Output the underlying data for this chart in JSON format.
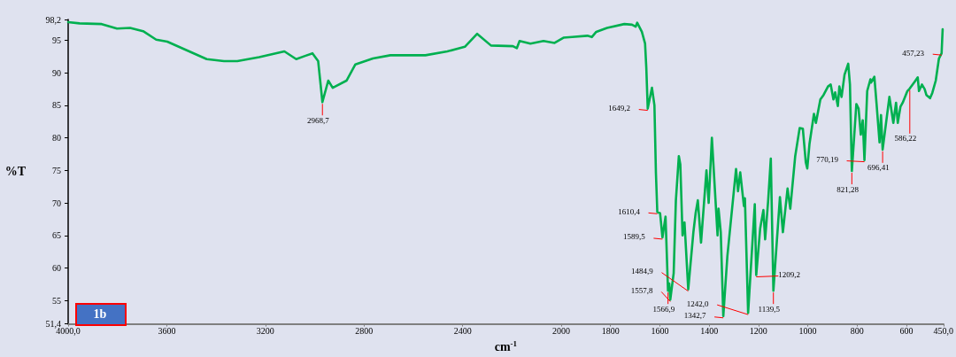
{
  "chart_data": {
    "type": "line",
    "xlabel": "cm$^{-1}$",
    "ylabel": "%T",
    "color": "#00b050",
    "marker": "none",
    "line_style": "solid",
    "xlim": [
      4000,
      450
    ],
    "ylim": [
      51.4,
      98.2
    ],
    "xticks": [
      {
        "value": 4000,
        "label": "4000,0"
      },
      3600,
      3200,
      2800,
      2400,
      2000,
      1800,
      1600,
      1400,
      1200,
      1000,
      800,
      600,
      {
        "value": 450,
        "label": "450,0"
      }
    ],
    "yticks": [
      {
        "value": 51.4,
        "label": "51,4"
      },
      55,
      60,
      65,
      70,
      75,
      80,
      85,
      90,
      95,
      {
        "value": 98.2,
        "label": "98,2"
      }
    ],
    "x": [
      4000,
      3954,
      3864,
      3802,
      3749,
      3696,
      3643,
      3598,
      3509,
      3438,
      3368,
      3314,
      3225,
      3123,
      3075,
      3039,
      3009,
      2986,
      2968.7,
      2945,
      2927,
      2871,
      2835,
      2764,
      2693,
      2551,
      2462,
      2391,
      2341,
      2285,
      2196,
      2180,
      2169,
      2125,
      2072,
      2027,
      1991,
      1956,
      1894,
      1876,
      1858,
      1814,
      1744,
      1713,
      1698,
      1692,
      1673,
      1660,
      1655,
      1649.2,
      1632,
      1622,
      1616,
      1610.4,
      1599,
      1589.5,
      1577,
      1566.9,
      1562,
      1557.8,
      1544,
      1535,
      1523,
      1517,
      1508,
      1500,
      1484.9,
      1464,
      1455,
      1446,
      1433,
      1411,
      1402,
      1389,
      1366,
      1362,
      1353,
      1342.7,
      1326,
      1291,
      1283,
      1274,
      1259,
      1255,
      1242.0,
      1215,
      1209.2,
      1193,
      1180,
      1173,
      1161,
      1150,
      1139.5,
      1113,
      1101,
      1082,
      1071,
      1051,
      1033,
      1020,
      1008,
      1002,
      993,
      975,
      967,
      958,
      949,
      936,
      918,
      907,
      896,
      889,
      878,
      872,
      863,
      851,
      836,
      829,
      821.28,
      803,
      794,
      785,
      777,
      770.19,
      759,
      746,
      743,
      730,
      721,
      709,
      703,
      696.41,
      669,
      653,
      642,
      635,
      624,
      615,
      596,
      586.22,
      567,
      554,
      549,
      537,
      526,
      519,
      504,
      495,
      481,
      468,
      457.23,
      453
    ],
    "values": [
      97.8,
      97.6,
      97.5,
      96.8,
      96.9,
      96.4,
      95.1,
      94.8,
      93.3,
      92.1,
      91.8,
      91.8,
      92.4,
      93.3,
      92.1,
      92.6,
      93.0,
      91.8,
      85.5,
      88.8,
      87.7,
      88.8,
      91.3,
      92.2,
      92.7,
      92.7,
      93.3,
      94.0,
      96.0,
      94.2,
      94.1,
      93.8,
      94.9,
      94.5,
      94.9,
      94.6,
      95.4,
      95.5,
      95.7,
      95.5,
      96.3,
      96.9,
      97.5,
      97.4,
      97.1,
      97.7,
      96.3,
      94.5,
      90.8,
      84.5,
      87.7,
      85.0,
      74.6,
      68.6,
      68.4,
      64.7,
      67.9,
      56.5,
      57.6,
      55.1,
      59.2,
      70.4,
      77.2,
      75.9,
      65.0,
      67.0,
      56.7,
      65.5,
      68.4,
      70.4,
      63.9,
      75.0,
      70.0,
      80.0,
      65.0,
      69.1,
      65.5,
      52.6,
      61.9,
      75.2,
      71.8,
      74.7,
      69.5,
      70.7,
      53.1,
      69.8,
      58.9,
      66.1,
      68.9,
      64.4,
      70.2,
      76.8,
      56.5,
      70.9,
      65.5,
      72.2,
      69.1,
      77.2,
      81.5,
      81.4,
      76.2,
      75.3,
      79.1,
      83.7,
      82.3,
      84.1,
      85.9,
      86.6,
      87.9,
      88.2,
      85.9,
      87.0,
      84.9,
      87.9,
      86.3,
      89.7,
      91.4,
      88.2,
      74.9,
      85.2,
      84.5,
      80.5,
      82.7,
      76.6,
      87.2,
      89.0,
      88.5,
      89.4,
      85.2,
      79.3,
      83.5,
      78.2,
      86.3,
      82.3,
      85.4,
      82.3,
      84.8,
      85.4,
      87.2,
      87.6,
      88.6,
      89.3,
      87.2,
      88.2,
      87.5,
      86.6,
      86.1,
      86.9,
      88.8,
      92.2,
      93.0,
      96.7
    ],
    "annotations": [
      "1b",
      {
        "text": "2968,7",
        "x": 2968.7,
        "y": 85.5
      },
      {
        "text": "1649,2",
        "x": 1649.2,
        "y": 84.5
      },
      {
        "text": "1610,4",
        "x": 1610.4,
        "y": 68.6
      },
      {
        "text": "1589,5",
        "x": 1589.5,
        "y": 64.7
      },
      {
        "text": "1566,9",
        "x": 1566.9,
        "y": 56.5
      },
      {
        "text": "1557,8",
        "x": 1557.8,
        "y": 55.1
      },
      {
        "text": "1484,9",
        "x": 1484.9,
        "y": 56.7
      },
      {
        "text": "1342,7",
        "x": 1342.7,
        "y": 52.6
      },
      {
        "text": "1242,0",
        "x": 1242.0,
        "y": 53.1
      },
      {
        "text": "1209,2",
        "x": 1209.2,
        "y": 58.9
      },
      {
        "text": "1139,5",
        "x": 1139.5,
        "y": 56.5
      },
      {
        "text": "821,28",
        "x": 821.28,
        "y": 74.9
      },
      {
        "text": "770,19",
        "x": 770.19,
        "y": 76.6
      },
      {
        "text": "696,41",
        "x": 696.41,
        "y": 78.2
      },
      {
        "text": "586,22",
        "x": 586.22,
        "y": 87.6
      },
      {
        "text": "457,23",
        "x": 457.23,
        "y": 93.0
      }
    ]
  }
}
